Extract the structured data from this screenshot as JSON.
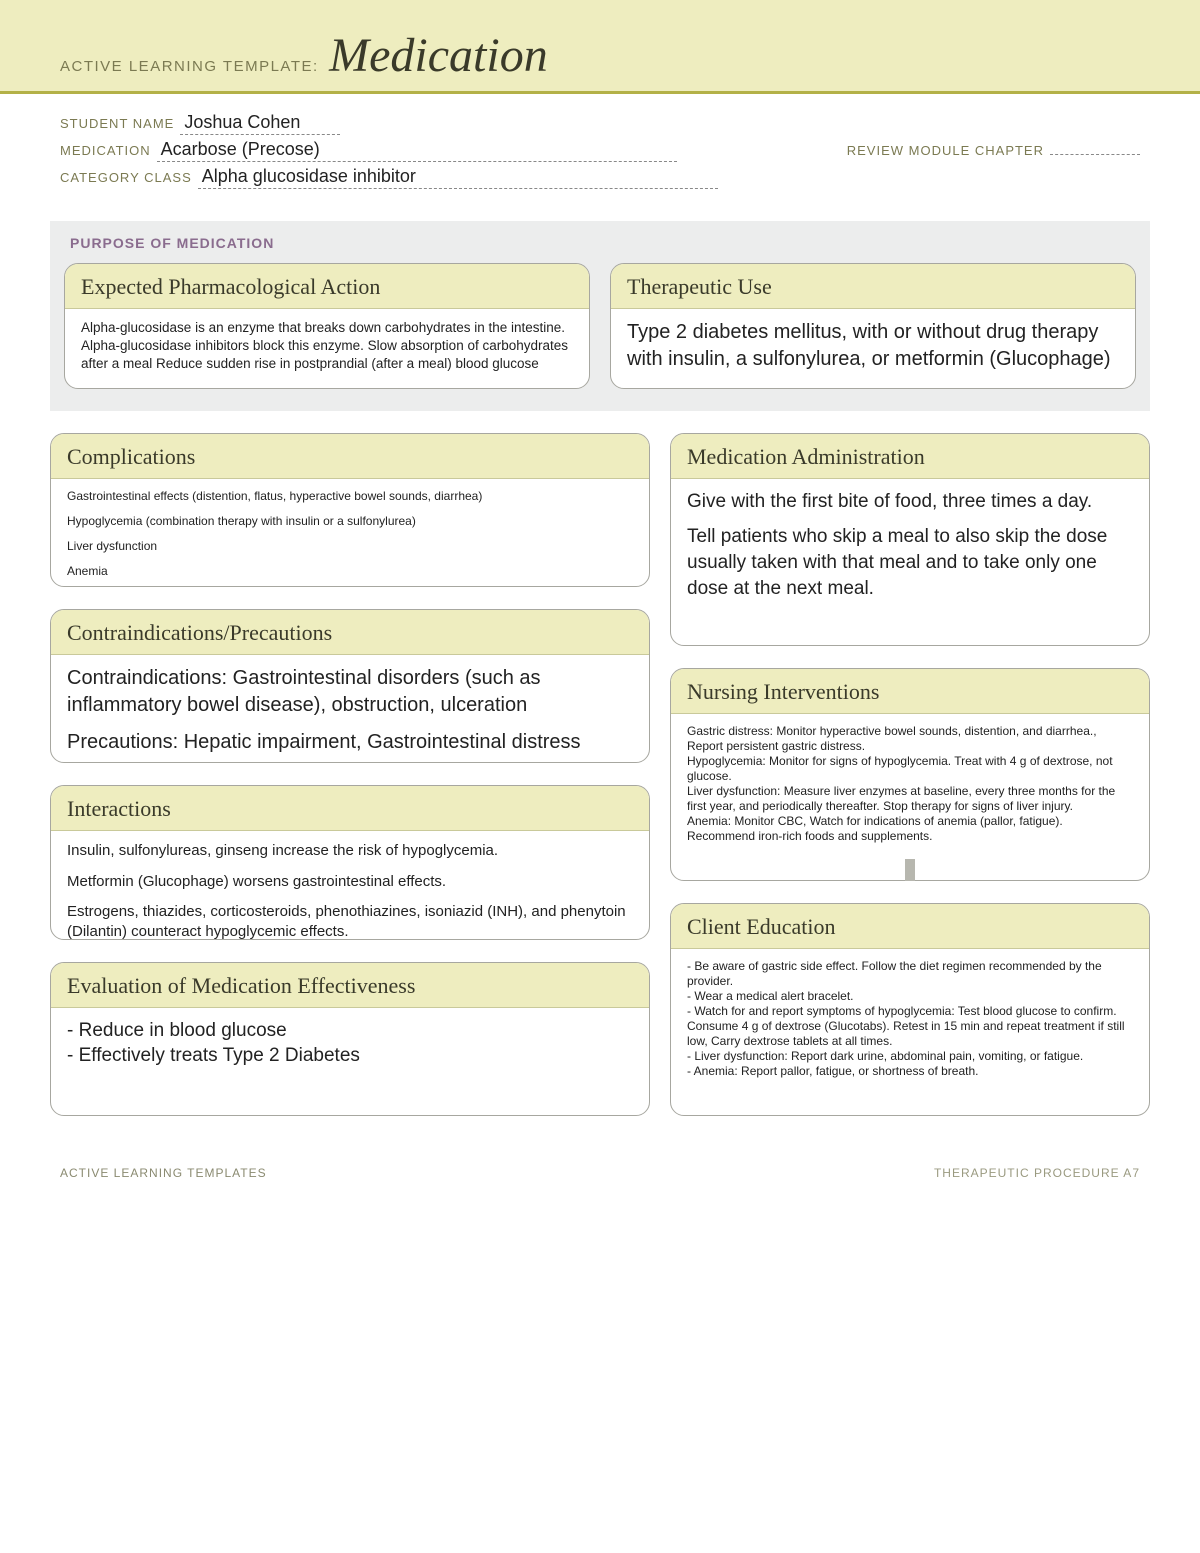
{
  "colors": {
    "band_bg": "#eeedbf",
    "band_border": "#b3b147",
    "label_text": "#7b7a52",
    "title_text": "#3a3a2a",
    "purpose_bg": "#eceded",
    "purpose_label": "#8a6c8e",
    "card_border": "#a7a7a0",
    "card_head_bg": "#eeedbf",
    "connector": "#b7b7af",
    "footer_text": "#8a8a70"
  },
  "header": {
    "prefix": "ACTIVE LEARNING TEMPLATE:",
    "title": "Medication"
  },
  "meta": {
    "student_label": "STUDENT NAME",
    "student_value": "Joshua Cohen",
    "medication_label": "MEDICATION",
    "medication_value": "Acarbose (Precose)",
    "review_label": "REVIEW MODULE CHAPTER",
    "review_value": "",
    "category_label": "CATEGORY CLASS",
    "category_value": "Alpha glucosidase inhibitor"
  },
  "purpose": {
    "section_label": "PURPOSE OF MEDICATION",
    "pharm": {
      "title": "Expected Pharmacological Action",
      "body": "Alpha-glucosidase is an enzyme that breaks down carbohydrates in the intestine. Alpha-glucosidase inhibitors block this enzyme. Slow absorption of carbohydrates after a meal Reduce sudden rise in postprandial (after a meal) blood glucose"
    },
    "therapeutic": {
      "title": "Therapeutic Use",
      "body": "Type 2 diabetes mellitus, with or without drug therapy with insulin, a sulfonylurea, or metformin (Glucophage)"
    }
  },
  "left": {
    "complications": {
      "title": "Complications",
      "lines": [
        "Gastrointestinal effects (distention, flatus, hyperactive bowel sounds, diarrhea)",
        "Hypoglycemia (combination therapy with insulin or a sulfonylurea)",
        "Liver dysfunction",
        "Anemia"
      ]
    },
    "contra": {
      "title": "Contraindications/Precautions",
      "p1": "Contraindications: Gastrointestinal disorders (such as inflammatory bowel disease), obstruction, ulceration",
      "p2": "Precautions: Hepatic impairment, Gastrointestinal distress"
    },
    "interactions": {
      "title": "Interactions",
      "p1": "Insulin, sulfonylureas, ginseng increase the risk of hypoglycemia.",
      "p2": "Metformin (Glucophage) worsens gastrointestinal effects.",
      "p3": "Estrogens, thiazides, corticosteroids, phenothiazines, isoniazid (INH), and phenytoin (Dilantin) counteract hypoglycemic effects."
    },
    "eval": {
      "title": "Evaluation of Medication Effectiveness",
      "p1": "- Reduce in blood glucose",
      "p2": "- Effectively treats Type 2 Diabetes"
    }
  },
  "right": {
    "admin": {
      "title": "Medication Administration",
      "p1": "Give with the first bite of food, three times a day.",
      "p2": "Tell patients who skip a meal to also skip the dose usually taken with that meal and to take only one dose at the next meal."
    },
    "nursing": {
      "title": "Nursing Interventions",
      "body": "Gastric distress: Monitor hyperactive bowel sounds, distention, and diarrhea., Report persistent gastric distress.\nHypoglycemia: Monitor for signs of hypoglycemia. Treat with 4 g of dextrose, not glucose.\nLiver dysfunction: Measure liver enzymes at baseline, every three months for the first year, and periodically thereafter. Stop therapy for signs of liver injury.\nAnemia: Monitor CBC, Watch for indications of anemia (pallor, fatigue). Recommend iron-rich foods and supplements."
    },
    "education": {
      "title": "Client Education",
      "body": "- Be aware of gastric side effect. Follow the diet regimen recommended by the provider.\n- Wear a medical alert bracelet.\n- Watch for and report symptoms of hypoglycemia: Test blood glucose to confirm. Consume 4 g of dextrose (Glucotabs). Retest in 15 min and repeat treatment if still low, Carry dextrose tablets at all times.\n- Liver dysfunction: Report dark urine, abdominal pain, vomiting, or fatigue.\n- Anemia: Report pallor, fatigue, or shortness of breath."
    }
  },
  "footer": {
    "left": "ACTIVE LEARNING TEMPLATES",
    "right": "THERAPEUTIC PROCEDURE   A7"
  }
}
